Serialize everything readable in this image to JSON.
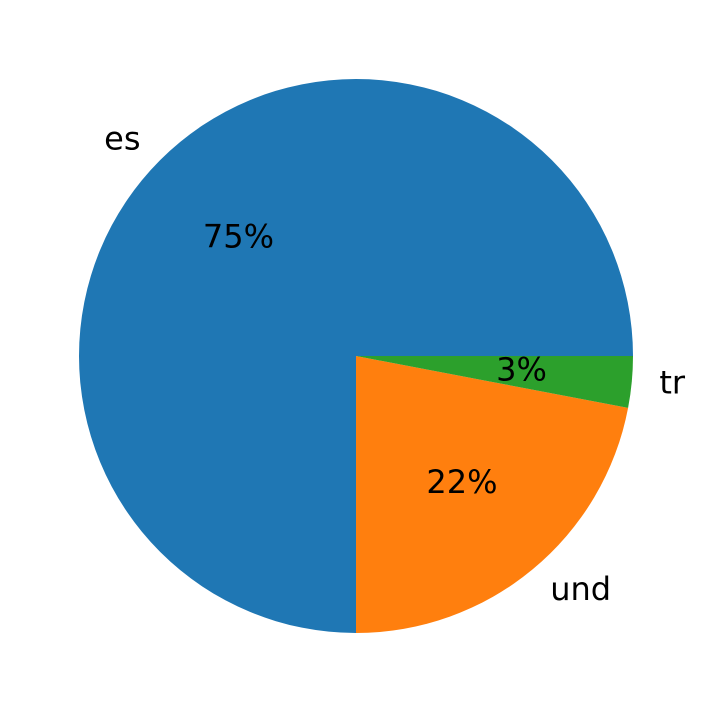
{
  "chart_data": {
    "type": "pie",
    "categories": [
      "es",
      "und",
      "tr"
    ],
    "values": [
      75,
      22,
      3
    ],
    "value_labels": [
      "75%",
      "22%",
      "3%"
    ],
    "colors": [
      "#1f77b4",
      "#ff7f0e",
      "#2ca02c"
    ]
  }
}
